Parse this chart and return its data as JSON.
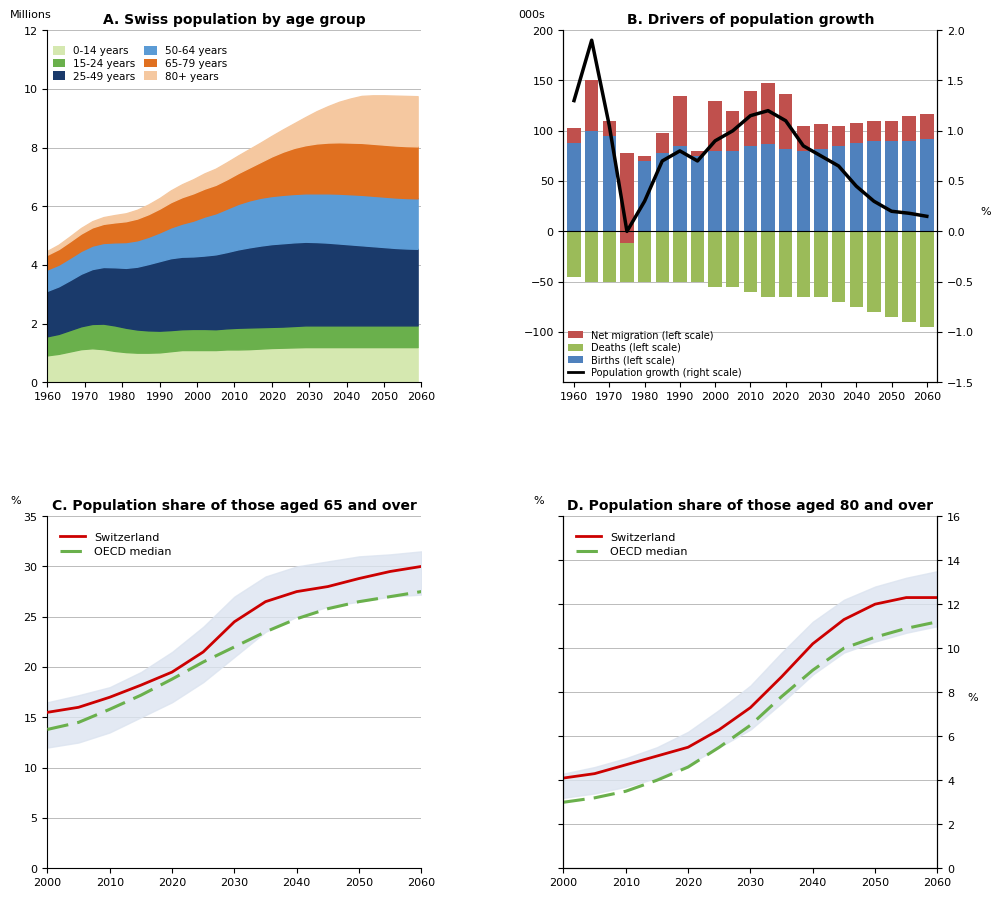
{
  "title_A": "A. Swiss population by age group",
  "title_B": "B. Drivers of population growth",
  "title_C": "C. Population share of those aged 65 and over",
  "title_D": "D. Population share of those aged 80 and over",
  "panel_A": {
    "ylabel": "Millions",
    "years": [
      1960,
      1963,
      1966,
      1969,
      1972,
      1975,
      1978,
      1981,
      1984,
      1987,
      1990,
      1993,
      1996,
      1999,
      2002,
      2005,
      2008,
      2011,
      2014,
      2017,
      2020,
      2023,
      2026,
      2029,
      2032,
      2035,
      2038,
      2041,
      2044,
      2047,
      2050,
      2053,
      2056,
      2059
    ],
    "age_0_14": [
      0.92,
      0.97,
      1.05,
      1.13,
      1.16,
      1.13,
      1.07,
      1.03,
      1.01,
      1.01,
      1.02,
      1.06,
      1.1,
      1.1,
      1.1,
      1.1,
      1.12,
      1.12,
      1.13,
      1.15,
      1.17,
      1.18,
      1.19,
      1.2,
      1.2,
      1.2,
      1.2,
      1.2,
      1.2,
      1.2,
      1.2,
      1.2,
      1.2,
      1.2
    ],
    "age_15_24": [
      0.65,
      0.68,
      0.73,
      0.78,
      0.83,
      0.87,
      0.87,
      0.83,
      0.79,
      0.76,
      0.74,
      0.72,
      0.71,
      0.72,
      0.72,
      0.71,
      0.72,
      0.74,
      0.74,
      0.73,
      0.72,
      0.72,
      0.73,
      0.74,
      0.74,
      0.74,
      0.74,
      0.74,
      0.74,
      0.74,
      0.74,
      0.74,
      0.74,
      0.74
    ],
    "age_25_49": [
      1.55,
      1.62,
      1.7,
      1.79,
      1.87,
      1.93,
      1.98,
      2.04,
      2.14,
      2.26,
      2.37,
      2.45,
      2.47,
      2.47,
      2.5,
      2.55,
      2.6,
      2.67,
      2.73,
      2.78,
      2.82,
      2.84,
      2.85,
      2.85,
      2.84,
      2.82,
      2.79,
      2.76,
      2.73,
      2.7,
      2.67,
      2.64,
      2.62,
      2.61
    ],
    "age_50_64": [
      0.73,
      0.74,
      0.76,
      0.78,
      0.8,
      0.82,
      0.85,
      0.88,
      0.9,
      0.93,
      0.98,
      1.05,
      1.13,
      1.22,
      1.33,
      1.4,
      1.48,
      1.55,
      1.6,
      1.63,
      1.64,
      1.65,
      1.65,
      1.65,
      1.66,
      1.68,
      1.7,
      1.71,
      1.72,
      1.72,
      1.72,
      1.72,
      1.72,
      1.72
    ],
    "age_65_79": [
      0.5,
      0.53,
      0.56,
      0.59,
      0.62,
      0.65,
      0.68,
      0.71,
      0.74,
      0.77,
      0.81,
      0.86,
      0.9,
      0.93,
      0.95,
      0.97,
      1.0,
      1.05,
      1.12,
      1.22,
      1.35,
      1.47,
      1.57,
      1.64,
      1.7,
      1.73,
      1.75,
      1.76,
      1.77,
      1.77,
      1.77,
      1.77,
      1.77,
      1.77
    ],
    "age_80p": [
      0.13,
      0.15,
      0.17,
      0.19,
      0.21,
      0.23,
      0.25,
      0.27,
      0.3,
      0.33,
      0.36,
      0.4,
      0.44,
      0.48,
      0.52,
      0.55,
      0.58,
      0.6,
      0.63,
      0.66,
      0.7,
      0.76,
      0.84,
      0.96,
      1.1,
      1.24,
      1.38,
      1.5,
      1.6,
      1.65,
      1.68,
      1.7,
      1.71,
      1.71
    ],
    "colors": [
      "#d5e8b0",
      "#6ab04c",
      "#1a3a6b",
      "#5b9bd5",
      "#e07020",
      "#f5c8a0"
    ],
    "labels": [
      "0-14 years",
      "15-24 years",
      "25-49 years",
      "50-64 years",
      "65-79 years",
      "80+ years"
    ],
    "ylim": [
      0,
      12
    ],
    "yticks": [
      0,
      2,
      4,
      6,
      8,
      10,
      12
    ],
    "xlim": [
      1960,
      2060
    ],
    "xticks": [
      1960,
      1970,
      1980,
      1990,
      2000,
      2010,
      2020,
      2030,
      2040,
      2050,
      2060
    ]
  },
  "panel_B": {
    "ylabel_left": "000s",
    "ylabel_right": "%",
    "years": [
      1960,
      1965,
      1970,
      1975,
      1980,
      1985,
      1990,
      1995,
      2000,
      2005,
      2010,
      2015,
      2020,
      2025,
      2030,
      2035,
      2040,
      2045,
      2050,
      2055,
      2060
    ],
    "net_migration": [
      15,
      50,
      15,
      -90,
      -5,
      20,
      50,
      5,
      50,
      40,
      55,
      60,
      55,
      25,
      25,
      20,
      20,
      20,
      20,
      25,
      25
    ],
    "deaths": [
      -45,
      -50,
      -50,
      -50,
      -50,
      -50,
      -50,
      -50,
      -55,
      -55,
      -60,
      -65,
      -65,
      -65,
      -65,
      -70,
      -75,
      -80,
      -85,
      -90,
      -95
    ],
    "births": [
      88,
      100,
      95,
      78,
      75,
      78,
      85,
      75,
      80,
      80,
      85,
      87,
      82,
      80,
      82,
      85,
      88,
      90,
      90,
      90,
      92
    ],
    "pop_growth_pct": [
      1.3,
      1.9,
      1.05,
      0.0,
      0.3,
      0.7,
      0.8,
      0.7,
      0.9,
      1.0,
      1.15,
      1.2,
      1.1,
      0.85,
      0.75,
      0.65,
      0.45,
      0.3,
      0.2,
      0.18,
      0.15
    ],
    "bar_colors": {
      "net_migration": "#c0504d",
      "deaths": "#9bbb59",
      "births": "#4f81bd"
    },
    "ylim_left": [
      -150,
      200
    ],
    "ylim_right": [
      -1.5,
      2.0
    ],
    "yticks_left": [
      -100,
      -50,
      0,
      50,
      100,
      150,
      200
    ],
    "yticks_right": [
      -1.5,
      -1.0,
      -0.5,
      0.0,
      0.5,
      1.0,
      1.5,
      2.0
    ],
    "xlim": [
      1957,
      2063
    ],
    "xticks": [
      1960,
      1970,
      1980,
      1990,
      2000,
      2010,
      2020,
      2030,
      2040,
      2050,
      2060
    ],
    "bar_width": 3.8
  },
  "panel_C": {
    "ylabel_left": "%",
    "years": [
      2000,
      2005,
      2010,
      2015,
      2020,
      2025,
      2030,
      2035,
      2040,
      2045,
      2050,
      2055,
      2060
    ],
    "switzerland": [
      15.5,
      16.0,
      17.0,
      18.2,
      19.5,
      21.5,
      24.5,
      26.5,
      27.5,
      28.0,
      28.8,
      29.5,
      30.0
    ],
    "oecd_median": [
      13.8,
      14.5,
      15.8,
      17.2,
      18.8,
      20.5,
      22.0,
      23.5,
      24.8,
      25.8,
      26.5,
      27.0,
      27.5
    ],
    "band_upper": [
      16.5,
      17.2,
      18.0,
      19.5,
      21.5,
      24.0,
      27.0,
      29.0,
      30.0,
      30.5,
      31.0,
      31.2,
      31.5
    ],
    "band_lower": [
      12.0,
      12.5,
      13.5,
      15.0,
      16.5,
      18.5,
      21.0,
      23.5,
      25.0,
      26.0,
      26.5,
      27.0,
      27.2
    ],
    "ylim": [
      0,
      35
    ],
    "yticks": [
      0,
      5,
      10,
      15,
      20,
      25,
      30,
      35
    ],
    "xlim": [
      2000,
      2060
    ],
    "xticks": [
      2000,
      2010,
      2020,
      2030,
      2040,
      2050,
      2060
    ]
  },
  "panel_D": {
    "ylabel_left": "%",
    "ylabel_right": "%",
    "years": [
      2000,
      2005,
      2010,
      2015,
      2020,
      2025,
      2030,
      2035,
      2040,
      2045,
      2050,
      2055,
      2060
    ],
    "switzerland": [
      4.1,
      4.3,
      4.7,
      5.1,
      5.5,
      6.3,
      7.3,
      8.7,
      10.2,
      11.3,
      12.0,
      12.3,
      12.3
    ],
    "oecd_median": [
      3.0,
      3.2,
      3.5,
      4.0,
      4.6,
      5.5,
      6.5,
      7.8,
      9.0,
      10.0,
      10.5,
      10.9,
      11.2
    ],
    "band_upper": [
      4.3,
      4.6,
      5.0,
      5.5,
      6.2,
      7.2,
      8.3,
      9.8,
      11.2,
      12.2,
      12.8,
      13.2,
      13.5
    ],
    "band_lower": [
      3.2,
      3.4,
      3.7,
      4.1,
      4.7,
      5.5,
      6.3,
      7.5,
      8.8,
      9.8,
      10.3,
      10.7,
      11.0
    ],
    "ylim_left": [
      0,
      16
    ],
    "ylim_right": [
      0,
      16
    ],
    "yticks_left": [
      0,
      2,
      4,
      6,
      8,
      10,
      12,
      14,
      16
    ],
    "yticks_right": [
      0,
      2,
      4,
      6,
      8,
      10,
      12,
      14,
      16
    ],
    "xlim": [
      2000,
      2060
    ],
    "xticks": [
      2000,
      2010,
      2020,
      2030,
      2040,
      2050,
      2060
    ]
  },
  "colors": {
    "switzerland_line": "#cc0000",
    "oecd_dashed": "#6ab04c",
    "band_fill": "#dce4f0",
    "pop_growth_line": "#000000"
  },
  "background": "#ffffff",
  "grid_color": "#bbbbbb"
}
